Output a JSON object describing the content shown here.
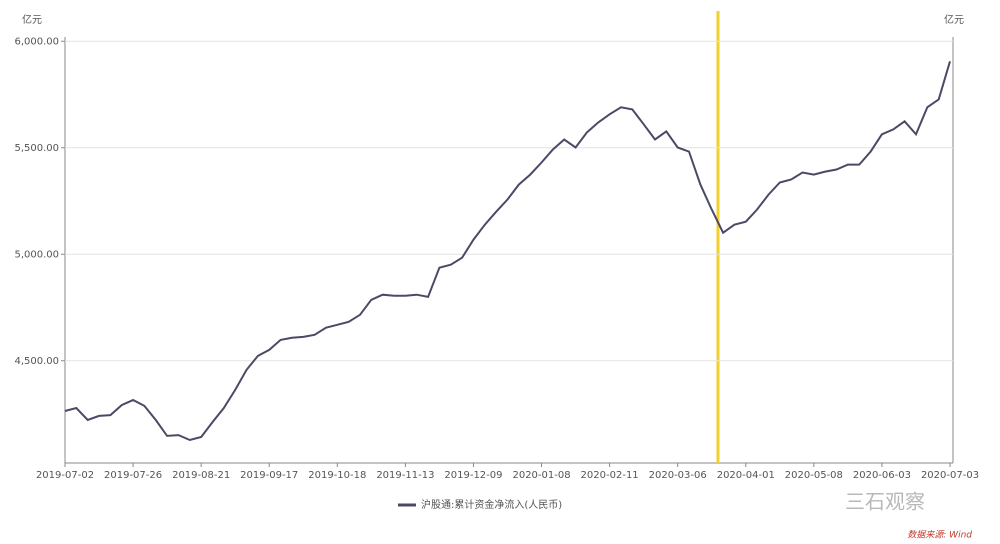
{
  "chart_data": {
    "type": "line",
    "y_unit": "亿元",
    "y_unit_right": "亿元",
    "watermark": "三石观察",
    "source": "数据来源: Wind",
    "categories": [
      "2019-07-02",
      null,
      null,
      null,
      null,
      null,
      "2019-07-26",
      null,
      null,
      null,
      null,
      null,
      "2019-08-21",
      null,
      null,
      null,
      null,
      null,
      "2019-09-17",
      null,
      null,
      null,
      null,
      null,
      "2019-10-18",
      null,
      null,
      null,
      null,
      null,
      "2019-11-13",
      null,
      null,
      null,
      null,
      null,
      "2019-12-09",
      null,
      null,
      null,
      null,
      null,
      "2020-01-08",
      null,
      null,
      null,
      null,
      null,
      "2020-02-11",
      null,
      null,
      null,
      null,
      null,
      "2020-03-06",
      null,
      null,
      null,
      null,
      null,
      "2020-04-01",
      null,
      null,
      null,
      null,
      null,
      "2020-05-08",
      null,
      null,
      null,
      null,
      null,
      "2020-06-03",
      null,
      null,
      null,
      null,
      null,
      "2020-07-03"
    ],
    "series": [
      {
        "name": "沪股通:累计资金净流入(人民币)",
        "color": "#4a4a66",
        "values": [
          4264,
          4278,
          4222,
          4241,
          4245,
          4292,
          4316,
          4288,
          4222,
          4147,
          4151,
          4128,
          4142,
          4212,
          4278,
          4363,
          4457,
          4523,
          4551,
          4598,
          4608,
          4612,
          4622,
          4655,
          4669,
          4683,
          4716,
          4786,
          4810,
          4805,
          4805,
          4810,
          4800,
          4937,
          4951,
          4984,
          5069,
          5139,
          5200,
          5257,
          5327,
          5374,
          5431,
          5492,
          5539,
          5501,
          5572,
          5619,
          5657,
          5690,
          5680,
          5610,
          5539,
          5577,
          5501,
          5482,
          5327,
          5210,
          5101,
          5139,
          5153,
          5210,
          5280,
          5337,
          5351,
          5384,
          5374,
          5388,
          5398,
          5421,
          5421,
          5482,
          5563,
          5586,
          5624,
          5563,
          5690,
          5727,
          5906
        ]
      }
    ],
    "ylim": [
      4020,
      6020
    ],
    "yticks": [
      {
        "value": 4500,
        "label": "4,500.00"
      },
      {
        "value": 5000,
        "label": "5,000.00"
      },
      {
        "value": 5500,
        "label": "5,500.00"
      },
      {
        "value": 6000,
        "label": "6,000.00"
      }
    ],
    "grid": true
  }
}
